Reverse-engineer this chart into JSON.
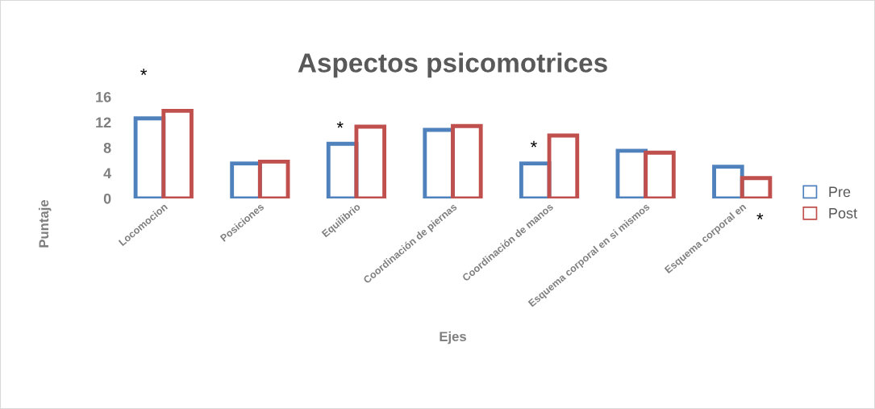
{
  "chart_data": {
    "type": "bar",
    "title": "Aspectos psicomotrices",
    "xlabel": "Ejes",
    "ylabel": "Puntaje",
    "categories": [
      "Locomocion",
      "Posiciones",
      "Equilibrio",
      "Coordinación de piernas",
      "Coordinación de manos",
      "Esquema corporal en si mismos",
      "Esquema corporal en"
    ],
    "series": [
      {
        "name": "Pre",
        "color": "#4f81bd",
        "values": [
          12.6,
          5.5,
          8.6,
          10.8,
          5.5,
          7.5,
          5.0
        ]
      },
      {
        "name": "Post",
        "color": "#c0504d",
        "values": [
          13.8,
          5.8,
          11.3,
          11.4,
          9.9,
          7.2,
          3.2
        ]
      }
    ],
    "ylim": [
      0,
      16
    ],
    "yticks": [
      0,
      4,
      8,
      12,
      16
    ],
    "grid": false,
    "legend": "right",
    "annotations": [
      "*",
      "*",
      "*",
      "*"
    ]
  }
}
